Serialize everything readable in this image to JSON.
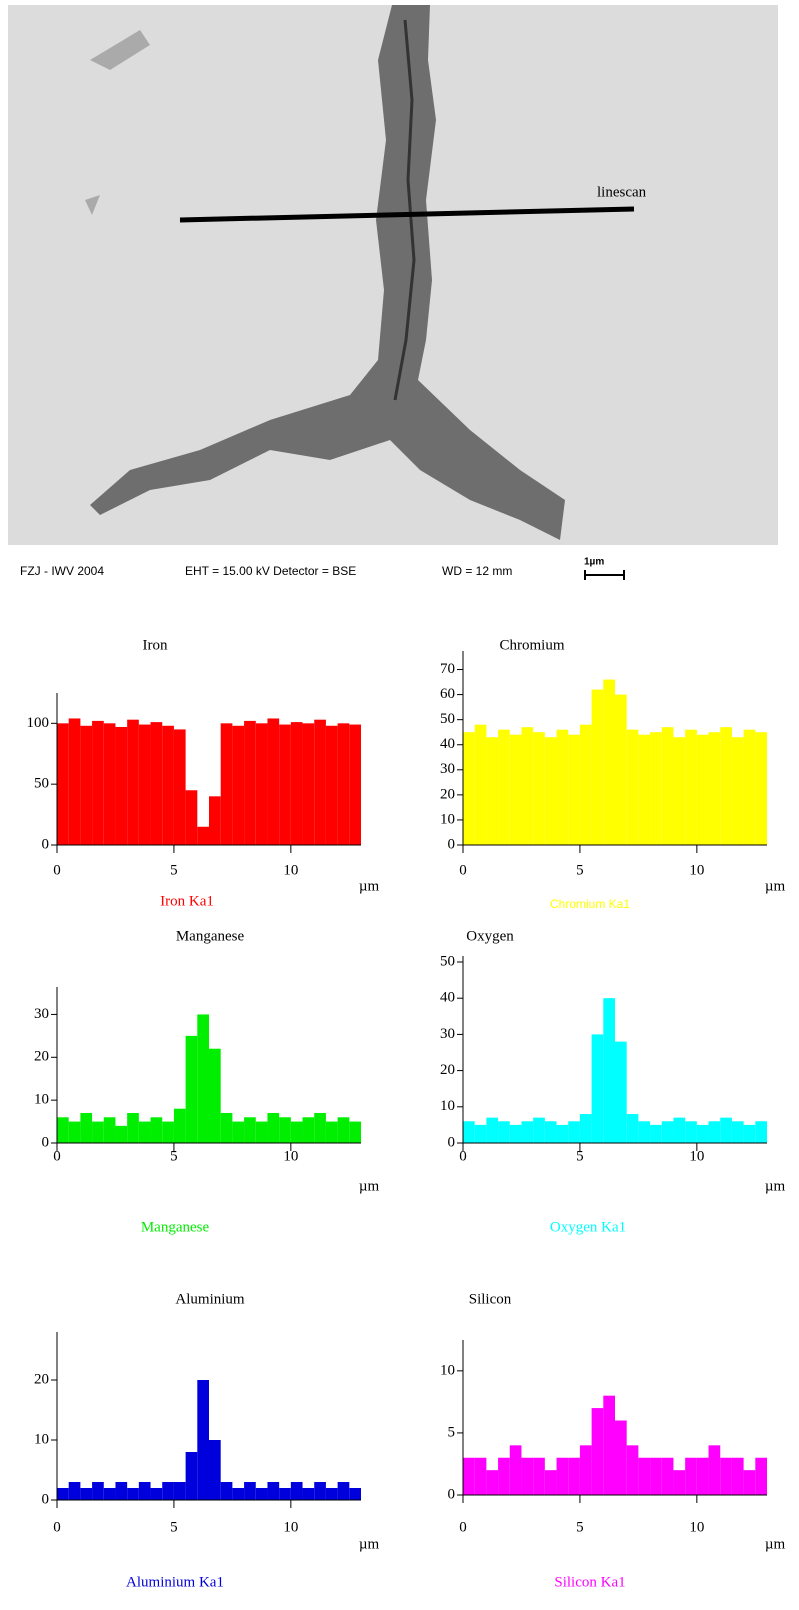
{
  "image": {
    "annotation": "linescan",
    "caption": [
      "FZJ - IWV 2004",
      "EHT = 15.00 kV  Detector = BSE",
      "WD =   12 mm"
    ],
    "scale_bar": "1µm"
  },
  "chart_data": [
    {
      "type": "area",
      "title": "Iron",
      "xlabel": "µm",
      "xlim": [
        0,
        13
      ],
      "xticks": [
        0,
        5,
        10
      ],
      "ylim": [
        0,
        120
      ],
      "yticks": [
        0,
        50,
        100
      ],
      "x": [
        0.25,
        0.75,
        1.25,
        1.75,
        2.25,
        2.75,
        3.25,
        3.75,
        4.25,
        4.75,
        5.25,
        5.75,
        6.25,
        6.75,
        7.25,
        7.75,
        8.25,
        8.75,
        9.25,
        9.75,
        10.25,
        10.75,
        11.25,
        11.75,
        12.25,
        12.75
      ],
      "series": [
        {
          "name": "Iron Ka1",
          "color": "#ff0000",
          "values": [
            100,
            104,
            98,
            102,
            100,
            97,
            103,
            99,
            101,
            98,
            95,
            45,
            15,
            40,
            100,
            98,
            102,
            100,
            104,
            99,
            101,
            100,
            103,
            98,
            100,
            99
          ]
        }
      ]
    },
    {
      "type": "area",
      "title": "Chromium",
      "xlabel": "µm",
      "xlim": [
        0,
        13
      ],
      "xticks": [
        0,
        5,
        10
      ],
      "ylim": [
        0,
        75
      ],
      "yticks": [
        0,
        10,
        20,
        30,
        40,
        50,
        60,
        70
      ],
      "x": [
        0.25,
        0.75,
        1.25,
        1.75,
        2.25,
        2.75,
        3.25,
        3.75,
        4.25,
        4.75,
        5.25,
        5.75,
        6.25,
        6.75,
        7.25,
        7.75,
        8.25,
        8.75,
        9.25,
        9.75,
        10.25,
        10.75,
        11.25,
        11.75,
        12.25,
        12.75
      ],
      "series": [
        {
          "name": "Chromium Ka1",
          "color": "#ffff00",
          "values": [
            45,
            48,
            43,
            46,
            44,
            47,
            45,
            43,
            46,
            44,
            48,
            62,
            66,
            60,
            46,
            44,
            45,
            47,
            43,
            46,
            44,
            45,
            47,
            43,
            46,
            45
          ]
        }
      ]
    },
    {
      "type": "area",
      "title": "Manganese",
      "xlabel": "µm",
      "xlim": [
        0,
        13
      ],
      "xticks": [
        0,
        5,
        10
      ],
      "ylim": [
        0,
        35
      ],
      "yticks": [
        0,
        10,
        20,
        30
      ],
      "x": [
        0.25,
        0.75,
        1.25,
        1.75,
        2.25,
        2.75,
        3.25,
        3.75,
        4.25,
        4.75,
        5.25,
        5.75,
        6.25,
        6.75,
        7.25,
        7.75,
        8.25,
        8.75,
        9.25,
        9.75,
        10.25,
        10.75,
        11.25,
        11.75,
        12.25,
        12.75
      ],
      "series": [
        {
          "name": "Manganese",
          "color": "#00ee00",
          "values": [
            6,
            5,
            7,
            5,
            6,
            4,
            7,
            5,
            6,
            5,
            8,
            25,
            30,
            22,
            7,
            5,
            6,
            5,
            7,
            6,
            5,
            6,
            7,
            5,
            6,
            5
          ]
        }
      ]
    },
    {
      "type": "area",
      "title": "Oxygen",
      "xlabel": "µm",
      "xlim": [
        0,
        13
      ],
      "xticks": [
        0,
        5,
        10
      ],
      "ylim": [
        0,
        50
      ],
      "yticks": [
        0,
        10,
        20,
        30,
        40,
        50
      ],
      "x": [
        0.25,
        0.75,
        1.25,
        1.75,
        2.25,
        2.75,
        3.25,
        3.75,
        4.25,
        4.75,
        5.25,
        5.75,
        6.25,
        6.75,
        7.25,
        7.75,
        8.25,
        8.75,
        9.25,
        9.75,
        10.25,
        10.75,
        11.25,
        11.75,
        12.25,
        12.75
      ],
      "series": [
        {
          "name": "Oxygen Ka1",
          "color": "#00ffff",
          "values": [
            6,
            5,
            7,
            6,
            5,
            6,
            7,
            6,
            5,
            6,
            8,
            30,
            40,
            28,
            8,
            6,
            5,
            6,
            7,
            6,
            5,
            6,
            7,
            6,
            5,
            6
          ]
        }
      ]
    },
    {
      "type": "area",
      "title": "Aluminium",
      "xlabel": "µm",
      "xlim": [
        0,
        13
      ],
      "xticks": [
        0,
        5,
        10
      ],
      "ylim": [
        0,
        27
      ],
      "yticks": [
        0,
        10,
        20
      ],
      "x": [
        0.25,
        0.75,
        1.25,
        1.75,
        2.25,
        2.75,
        3.25,
        3.75,
        4.25,
        4.75,
        5.25,
        5.75,
        6.25,
        6.75,
        7.25,
        7.75,
        8.25,
        8.75,
        9.25,
        9.75,
        10.25,
        10.75,
        11.25,
        11.75,
        12.25,
        12.75
      ],
      "series": [
        {
          "name": "Aluminium Ka1",
          "color": "#0000dd",
          "values": [
            2,
            3,
            2,
            3,
            2,
            3,
            2,
            3,
            2,
            3,
            3,
            8,
            20,
            10,
            3,
            2,
            3,
            2,
            3,
            2,
            3,
            2,
            3,
            2,
            3,
            2
          ]
        }
      ]
    },
    {
      "type": "area",
      "title": "Silicon",
      "xlabel": "µm",
      "xlim": [
        0,
        13
      ],
      "xticks": [
        0,
        5,
        10
      ],
      "ylim": [
        0,
        12
      ],
      "yticks": [
        0,
        5,
        10
      ],
      "x": [
        0.25,
        0.75,
        1.25,
        1.75,
        2.25,
        2.75,
        3.25,
        3.75,
        4.25,
        4.75,
        5.25,
        5.75,
        6.25,
        6.75,
        7.25,
        7.75,
        8.25,
        8.75,
        9.25,
        9.75,
        10.25,
        10.75,
        11.25,
        11.75,
        12.25,
        12.75
      ],
      "series": [
        {
          "name": "Silicon Ka1",
          "color": "#ff00ff",
          "values": [
            3,
            3,
            2,
            3,
            4,
            3,
            3,
            2,
            3,
            3,
            4,
            7,
            8,
            6,
            4,
            3,
            3,
            3,
            2,
            3,
            3,
            4,
            3,
            3,
            2,
            3
          ]
        }
      ]
    }
  ]
}
